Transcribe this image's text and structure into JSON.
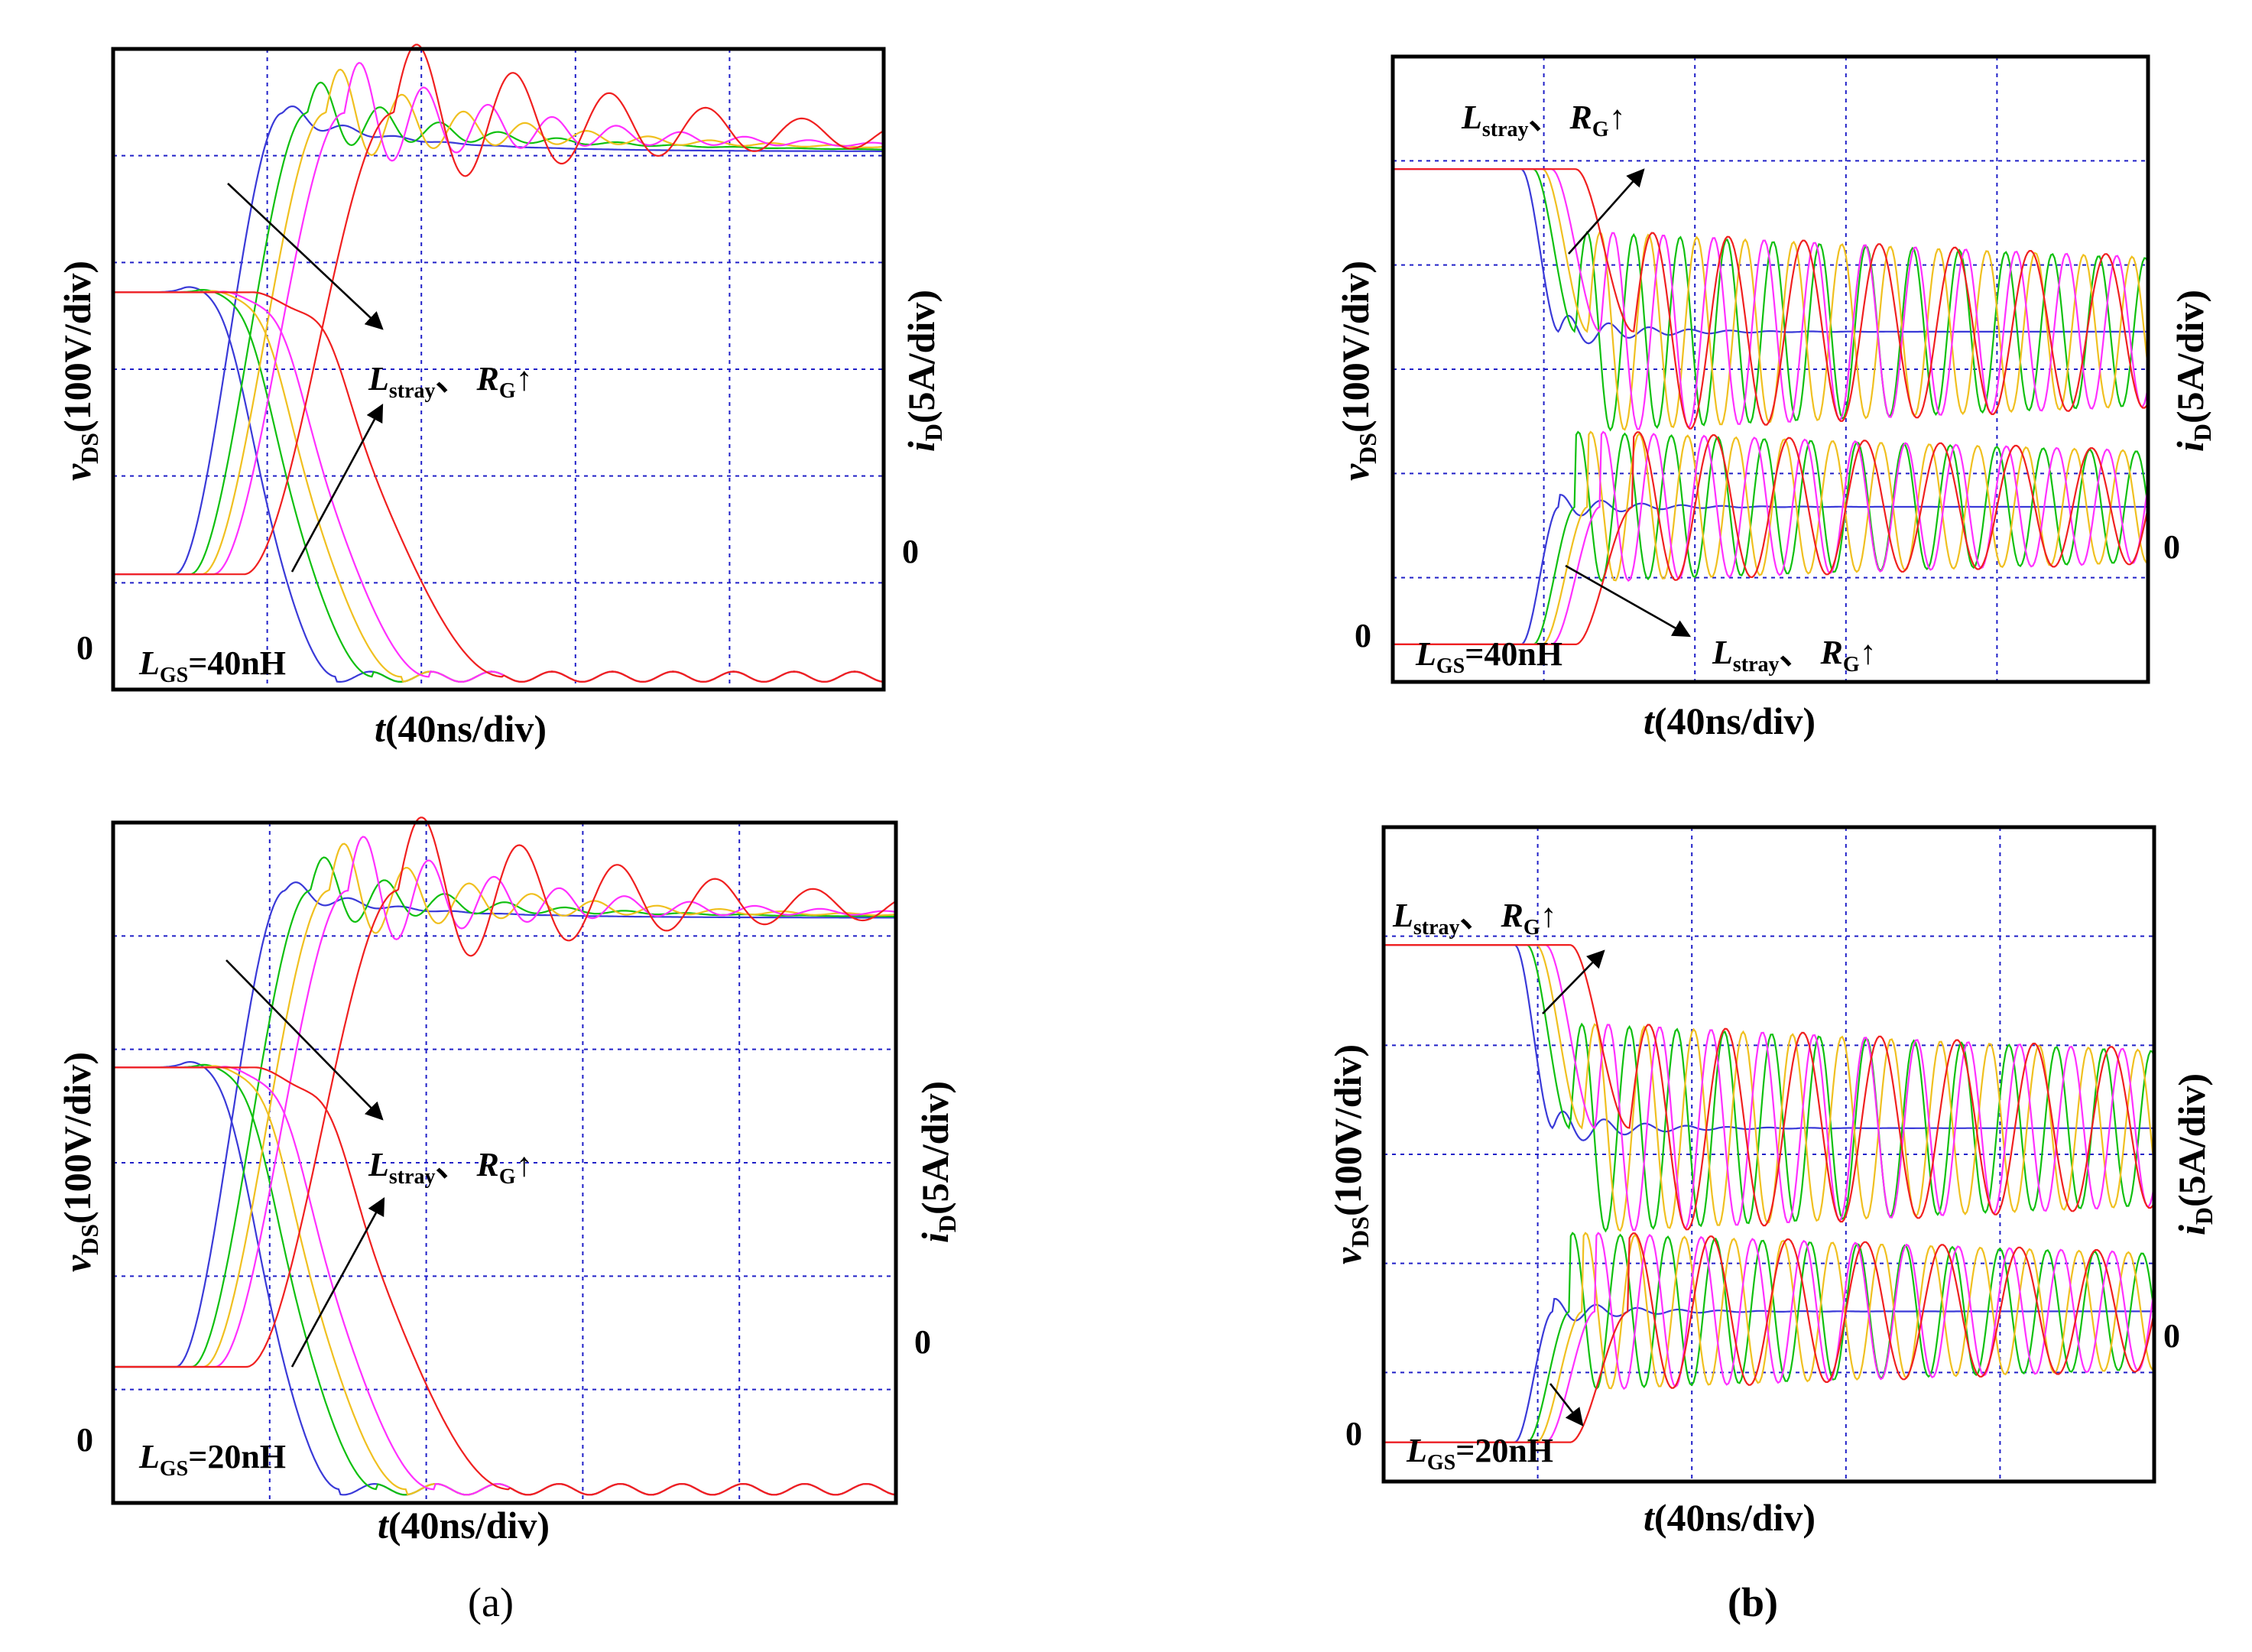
{
  "figure": {
    "panel_captions": [
      "(a)",
      "(b)"
    ]
  },
  "colors": {
    "blue": "#3a3ad8",
    "green": "#10c010",
    "yellow": "#f0c020",
    "magenta": "#ff30ff",
    "red": "#f02020",
    "grid": "#2020c8"
  },
  "chart_data": [
    {
      "id": "a-top",
      "type": "line",
      "xlabel": "t(40ns/div)",
      "ylabel_left": "vDS(100V/div)",
      "ylabel_right": "iD(5A/div)",
      "zero_left_label": "0",
      "zero_right_label": "0",
      "param_label": "LGS=40nH",
      "annotation": "Lstray、RG↑",
      "x_divisions": 5,
      "y_divisions": 6,
      "series": [
        {
          "name": "blue",
          "color": "#3a3ad8"
        },
        {
          "name": "green",
          "color": "#10c010"
        },
        {
          "name": "yellow",
          "color": "#f0c020"
        },
        {
          "name": "magenta",
          "color": "#ff30ff"
        },
        {
          "name": "red",
          "color": "#f02020"
        }
      ]
    },
    {
      "id": "b-top",
      "type": "line",
      "xlabel": "t(40ns/div)",
      "ylabel_left": "vDS(100V/div)",
      "ylabel_right": "iD(5A/div)",
      "zero_left_label": "0",
      "zero_right_label": "0",
      "param_label": "LGS=40nH",
      "annotation_top": "Lstray、RG↑",
      "annotation_bottom": "Lstray、RG↑",
      "x_divisions": 5,
      "y_divisions": 6,
      "series": [
        {
          "name": "blue",
          "color": "#3a3ad8"
        },
        {
          "name": "green",
          "color": "#10c010"
        },
        {
          "name": "yellow",
          "color": "#f0c020"
        },
        {
          "name": "magenta",
          "color": "#ff30ff"
        },
        {
          "name": "red",
          "color": "#f02020"
        }
      ]
    },
    {
      "id": "a-bottom",
      "type": "line",
      "xlabel": "t(40ns/div)",
      "ylabel_left": "vDS(100V/div)",
      "ylabel_right": "iD(5A/div)",
      "zero_left_label": "0",
      "zero_right_label": "0",
      "param_label": "LGS=20nH",
      "annotation": "Lstray、RG↑",
      "x_divisions": 5,
      "y_divisions": 6,
      "series": [
        {
          "name": "blue",
          "color": "#3a3ad8"
        },
        {
          "name": "green",
          "color": "#10c010"
        },
        {
          "name": "yellow",
          "color": "#f0c020"
        },
        {
          "name": "magenta",
          "color": "#ff30ff"
        },
        {
          "name": "red",
          "color": "#f02020"
        }
      ]
    },
    {
      "id": "b-bottom",
      "type": "line",
      "xlabel": "t(40ns/div)",
      "ylabel_left": "vDS(100V/div)",
      "ylabel_right": "iD(5A/div)",
      "zero_left_label": "0",
      "zero_right_label": "0",
      "param_label": "LGS=20nH",
      "annotation": "Lstray、RG↑",
      "x_divisions": 5,
      "y_divisions": 6,
      "series": [
        {
          "name": "blue",
          "color": "#3a3ad8"
        },
        {
          "name": "green",
          "color": "#10c010"
        },
        {
          "name": "yellow",
          "color": "#f0c020"
        },
        {
          "name": "magenta",
          "color": "#ff30ff"
        },
        {
          "name": "red",
          "color": "#f02020"
        }
      ]
    }
  ]
}
